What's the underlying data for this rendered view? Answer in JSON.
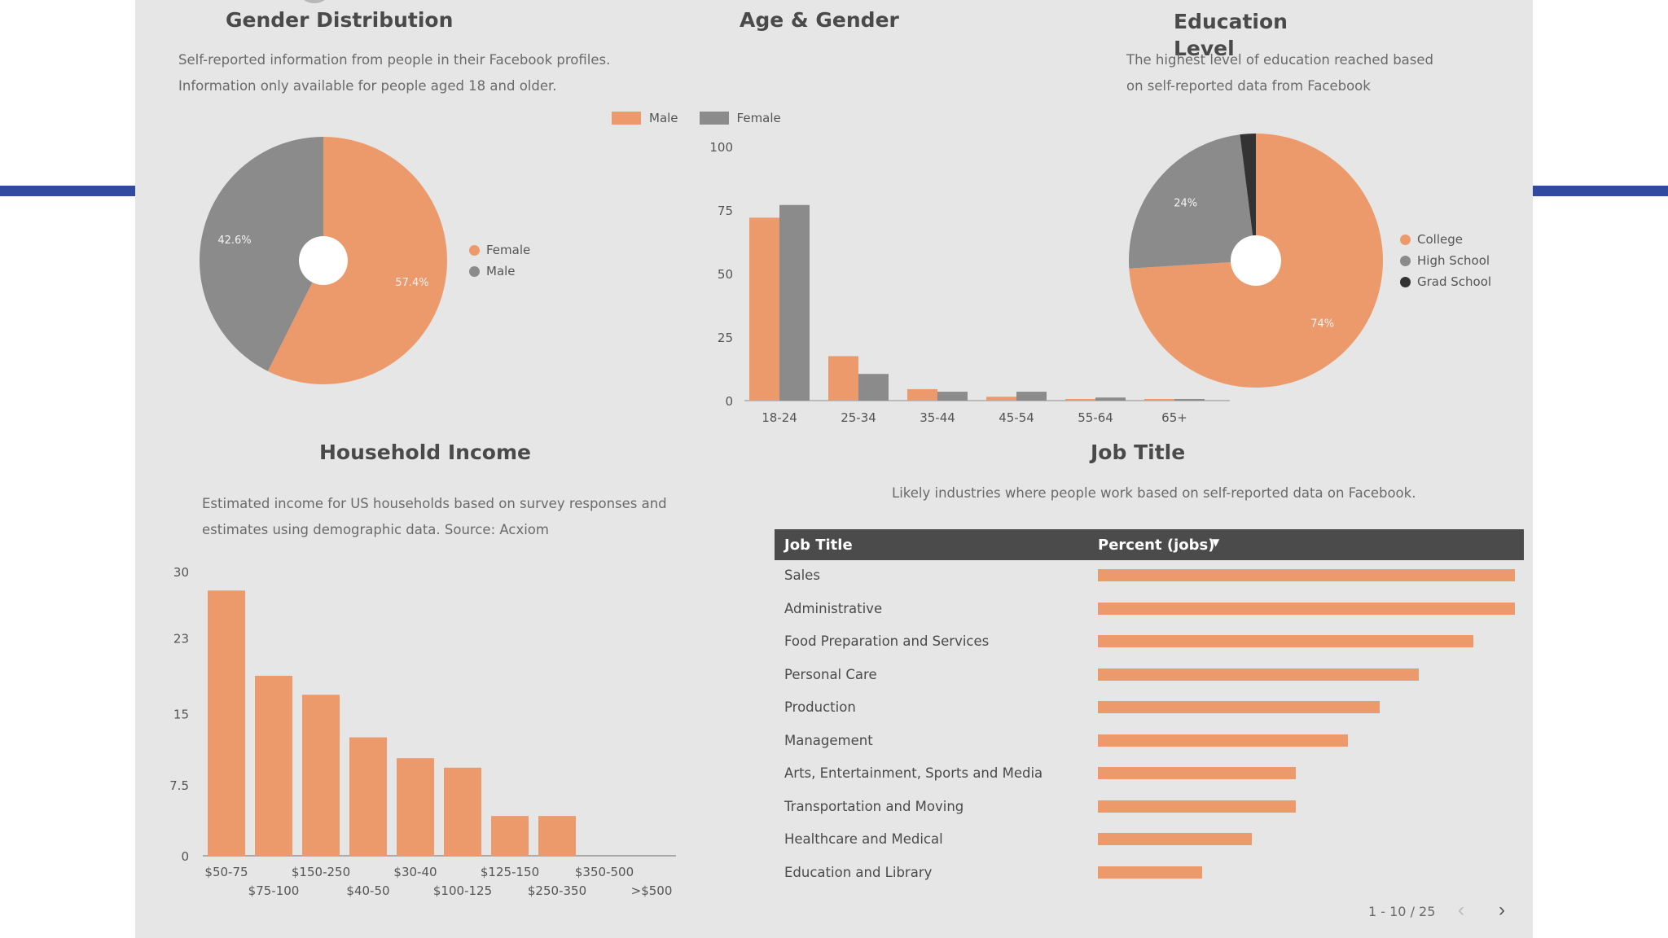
{
  "colors": {
    "accent": "#ec9a6c",
    "gray": "#8b8b8b",
    "dark": "#333333",
    "panel": "#e6e6e6",
    "stripe": "#2f4a9e"
  },
  "gender": {
    "title": "Gender Distribution",
    "desc_lines": [
      "Self-reported information from people in their Facebook profiles.",
      "Information only available for people aged 18 and older."
    ]
  },
  "age": {
    "title": "Age & Gender"
  },
  "education": {
    "title": "Education Level",
    "desc_lines": [
      "The highest level of education reached based",
      "on self-reported data from Facebook"
    ]
  },
  "income": {
    "title": "Household Income",
    "desc_lines": [
      "Estimated income for US households based on survey responses and",
      "estimates using demographic data. Source: Acxiom"
    ]
  },
  "jobs": {
    "title": "Job Title",
    "desc": "Likely industries where people work based on self-reported data on Facebook.",
    "col_job": "Job Title",
    "col_pct": "Percent (jobs)",
    "pager": "1 - 10 / 25"
  },
  "chart_data": [
    {
      "id": "gender",
      "type": "pie",
      "title": "Gender Distribution",
      "categories": [
        "Female",
        "Male"
      ],
      "values": [
        57.4,
        42.6
      ],
      "labels": [
        "57.4%",
        "42.6%"
      ],
      "colors": [
        "#ec9a6c",
        "#8b8b8b"
      ],
      "donut": true,
      "legend": "right"
    },
    {
      "id": "age",
      "type": "bar",
      "title": "Age & Gender",
      "categories": [
        "18-24",
        "25-34",
        "35-44",
        "45-54",
        "55-64",
        "65+"
      ],
      "series": [
        {
          "name": "Male",
          "values": [
            72,
            17.5,
            4.5,
            1.5,
            0.6,
            0.4
          ],
          "color": "#ec9a6c"
        },
        {
          "name": "Female",
          "values": [
            77,
            10.5,
            3.5,
            3.5,
            1.2,
            0.6
          ],
          "color": "#8b8b8b"
        }
      ],
      "ylim": [
        0,
        100
      ],
      "yticks": [
        "0",
        "25",
        "50",
        "75",
        "100"
      ],
      "legend": "top"
    },
    {
      "id": "education",
      "type": "pie",
      "title": "Education Level",
      "categories": [
        "College",
        "High School",
        "Grad School"
      ],
      "values": [
        74,
        24,
        2
      ],
      "labels": [
        "74%",
        "24%",
        ""
      ],
      "colors": [
        "#ec9a6c",
        "#8b8b8b",
        "#333333"
      ],
      "donut": true,
      "legend": "right"
    },
    {
      "id": "income",
      "type": "bar",
      "title": "Household Income",
      "categories": [
        "$50-75",
        "$75-100",
        "$150-250",
        "$40-50",
        "$30-40",
        "$100-125",
        "$125-150",
        "$250-350",
        "$350-500",
        ">$500"
      ],
      "values": [
        28,
        19,
        17,
        12.5,
        10.3,
        9.3,
        4.2,
        4.2,
        0,
        0
      ],
      "ylim": [
        0,
        30
      ],
      "yticks": [
        "0",
        "7.5",
        "15",
        "23",
        "30"
      ],
      "color": "#ec9a6c"
    },
    {
      "id": "jobs",
      "type": "bar",
      "orientation": "horizontal",
      "title": "Job Title",
      "categories": [
        "Sales",
        "Administrative",
        "Food Preparation and Services",
        "Personal Care",
        "Production",
        "Management",
        "Arts, Entertainment, Sports and Media",
        "Transportation and Moving",
        "Healthcare and Medical",
        "Education and Library"
      ],
      "values": [
        100,
        100,
        90,
        77,
        67.5,
        60,
        47.5,
        47.5,
        37,
        25
      ],
      "unit": "relative percent of max",
      "color": "#ec9a6c"
    }
  ]
}
